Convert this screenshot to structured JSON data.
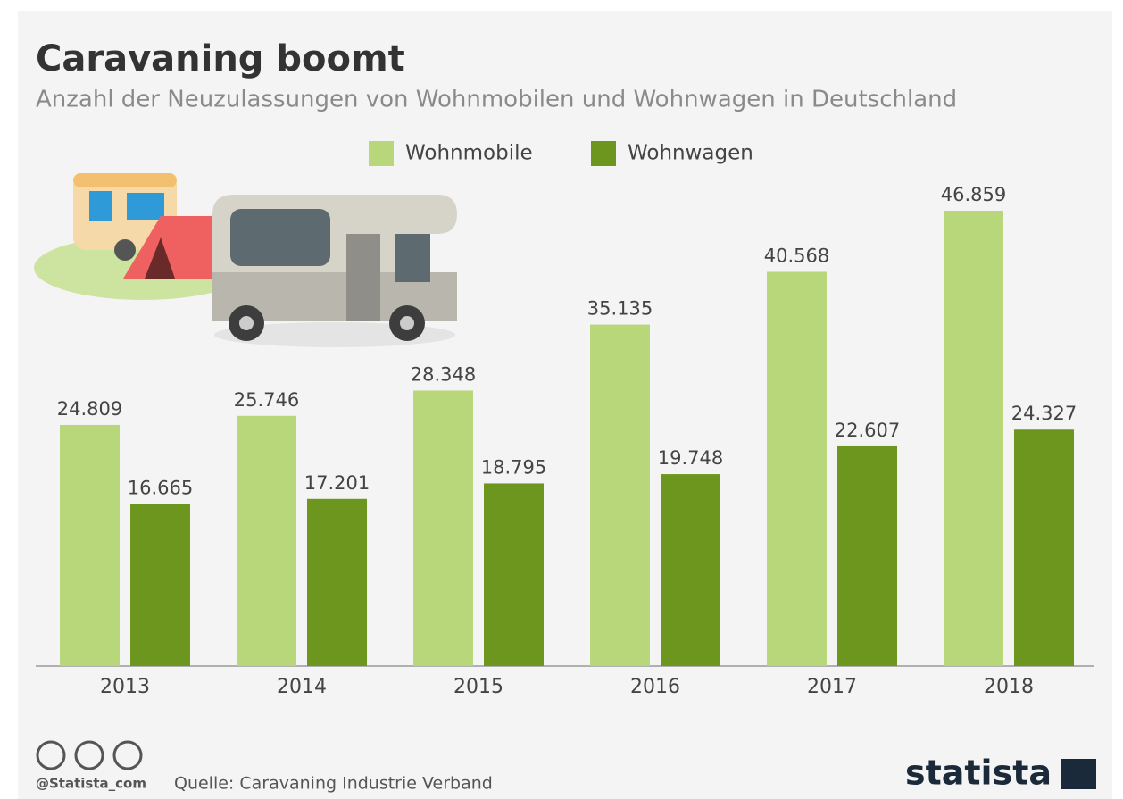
{
  "chart_data": {
    "type": "bar",
    "title": "Caravaning boomt",
    "subtitle": "Anzahl der Neuzulassungen von Wohnmobilen und Wohnwagen in Deutschland",
    "categories": [
      "2013",
      "2014",
      "2015",
      "2016",
      "2017",
      "2018"
    ],
    "series": [
      {
        "name": "Wohnmobile",
        "color": "#b8d67a",
        "values": [
          24809,
          25746,
          28348,
          35135,
          40568,
          46859
        ],
        "value_labels": [
          "24.809",
          "25.746",
          "28.348",
          "35.135",
          "40.568",
          "46.859"
        ]
      },
      {
        "name": "Wohnwagen",
        "color": "#6c961d",
        "values": [
          16665,
          17201,
          18795,
          19748,
          22607,
          24327
        ],
        "value_labels": [
          "16.665",
          "17.201",
          "18.795",
          "19.748",
          "22.607",
          "24.327"
        ]
      }
    ],
    "credit": "@Statista_com",
    "source": "Quelle: Caravaning Industrie Verband",
    "brand": "statista"
  }
}
